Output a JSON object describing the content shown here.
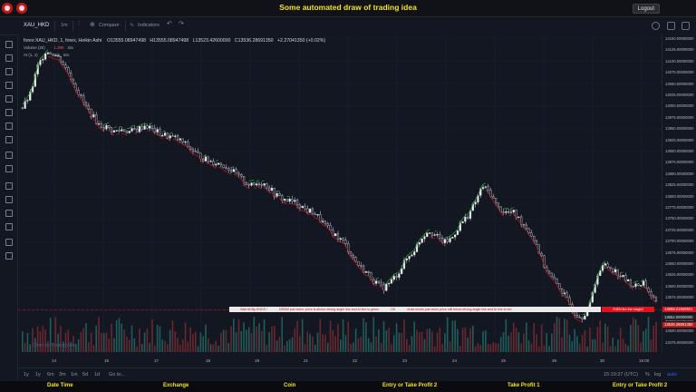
{
  "app": {
    "title": "Some automated draw of trading idea",
    "logout_label": "Logout"
  },
  "toolbar": {
    "symbol": "XAU_HKD",
    "interval": "1m",
    "compare_label": "Compare",
    "indicators_label": "Indicators"
  },
  "legend": {
    "series": "forex:XAU_HKD, 1, forex, Heikin Ashi",
    "open": "O13555.08947498",
    "high": "H13555.08947498",
    "low": "L13523.42600000",
    "close": "C13536.28691350",
    "change": "+2.27041350 (+0.02%)",
    "volume_label": "Volume (20)",
    "volume_value": "1.29K",
    "volume_na": "n/a",
    "ai_label": "AI (1, 1)",
    "ai_na1": "n/a",
    "ai_na2": "n/a"
  },
  "price_axis": {
    "labels": [
      "14150.00000000",
      "14125.00000000",
      "14100.00000000",
      "14075.00000000",
      "14050.00000000",
      "14025.00000000",
      "14000.00000000",
      "13975.00000000",
      "13950.00000000",
      "13925.00000000",
      "13900.00000000",
      "13875.00000000",
      "13850.00000000",
      "13825.00000000",
      "13800.00000000",
      "13775.00000000",
      "13750.00000000",
      "13725.00000000",
      "13700.00000000",
      "13675.00000000",
      "13650.00000000",
      "13625.00000000",
      "13600.00000000",
      "13575.00000000",
      "13550.00000000",
      "13525.00000000",
      "13500.00000000",
      "13475.00000000"
    ],
    "badge_red": "13568.21940921",
    "badge_last": "13552.00000000",
    "badge_close": "13536.28691350"
  },
  "time_axis": [
    "14",
    "15",
    "16",
    "17",
    "18",
    "19",
    "20",
    "21",
    "22",
    "23",
    "24",
    "25",
    "26",
    "29",
    "30",
    "15:00"
  ],
  "bottom_bar": {
    "ranges": [
      "1y",
      "1y",
      "6m",
      "3m",
      "1m",
      "5d",
      "1d",
      "Go to..."
    ],
    "clock": "15:19:37 (UTC)",
    "pct": "%",
    "log": "log",
    "auto": "auto"
  },
  "banner": {
    "t1": "Wait till flip ENDS !",
    "t2": "DRAW just when: price is above strong angle line and AI line is green",
    "t3": "OK",
    "t4": "draw shorts just when price still below strong angle line and AI line is red",
    "t5": "THEN fire the magic!!"
  },
  "watermark": "Chart by TradingView",
  "footer": {
    "date_time": "Date Time",
    "exchange": "Exchange",
    "coin": "Coin",
    "entry_tp2_a": "Entry or Take Profit 2",
    "take_profit1": "Take Profit 1",
    "entry_tp2_b": "Entry or Take Profit 2"
  },
  "colors": {
    "accent_yellow": "#f5e31a",
    "bull": "#26a69a",
    "bear": "#ef5350",
    "ai_green": "#2e9c2e",
    "ai_red": "#b71c1c"
  },
  "chart_data": {
    "type": "line",
    "title": "",
    "ylim": [
      13460,
      14160
    ],
    "price_path": [
      [
        0,
        14000
      ],
      [
        3,
        14030
      ],
      [
        6,
        14095
      ],
      [
        9,
        14130
      ],
      [
        12,
        14125
      ],
      [
        15,
        14110
      ],
      [
        18,
        14080
      ],
      [
        21,
        14045
      ],
      [
        24,
        14010
      ],
      [
        27,
        13985
      ],
      [
        30,
        13960
      ],
      [
        33,
        13955
      ],
      [
        36,
        13945
      ],
      [
        39,
        13950
      ],
      [
        42,
        13945
      ],
      [
        45,
        13950
      ],
      [
        48,
        13960
      ],
      [
        51,
        13950
      ],
      [
        54,
        13940
      ],
      [
        57,
        13935
      ],
      [
        60,
        13930
      ],
      [
        63,
        13920
      ],
      [
        66,
        13905
      ],
      [
        69,
        13890
      ],
      [
        72,
        13880
      ],
      [
        75,
        13875
      ],
      [
        78,
        13870
      ],
      [
        81,
        13860
      ],
      [
        84,
        13845
      ],
      [
        87,
        13830
      ],
      [
        90,
        13820
      ],
      [
        93,
        13830
      ],
      [
        96,
        13820
      ],
      [
        99,
        13800
      ],
      [
        102,
        13790
      ],
      [
        105,
        13785
      ],
      [
        108,
        13780
      ],
      [
        111,
        13765
      ],
      [
        114,
        13760
      ],
      [
        117,
        13740
      ],
      [
        120,
        13720
      ],
      [
        123,
        13705
      ],
      [
        126,
        13690
      ],
      [
        129,
        13660
      ],
      [
        132,
        13635
      ],
      [
        135,
        13620
      ],
      [
        138,
        13600
      ],
      [
        141,
        13585
      ],
      [
        144,
        13600
      ],
      [
        147,
        13620
      ],
      [
        150,
        13650
      ],
      [
        153,
        13670
      ],
      [
        156,
        13700
      ],
      [
        159,
        13720
      ],
      [
        162,
        13705
      ],
      [
        165,
        13690
      ],
      [
        168,
        13700
      ],
      [
        171,
        13730
      ],
      [
        174,
        13750
      ],
      [
        177,
        13780
      ],
      [
        180,
        13820
      ],
      [
        183,
        13805
      ],
      [
        186,
        13770
      ],
      [
        189,
        13760
      ],
      [
        192,
        13760
      ],
      [
        195,
        13740
      ],
      [
        198,
        13720
      ],
      [
        201,
        13690
      ],
      [
        204,
        13640
      ],
      [
        207,
        13610
      ],
      [
        210,
        13590
      ],
      [
        213,
        13560
      ],
      [
        216,
        13530
      ],
      [
        219,
        13520
      ],
      [
        222,
        13545
      ],
      [
        225,
        13620
      ],
      [
        228,
        13640
      ],
      [
        231,
        13630
      ],
      [
        234,
        13615
      ],
      [
        237,
        13600
      ],
      [
        240,
        13590
      ],
      [
        243,
        13600
      ],
      [
        246,
        13570
      ],
      [
        249,
        13540
      ]
    ],
    "volume_bars": 250
  }
}
